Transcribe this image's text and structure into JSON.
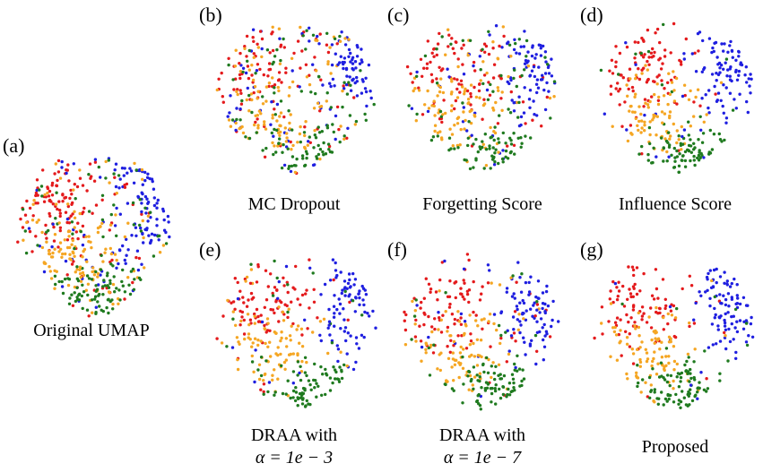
{
  "figure": {
    "panels": [
      {
        "letter": "(a)",
        "caption": "Original UMAP",
        "caption2": "",
        "mixing": 0.38,
        "gap": 0.0,
        "seed": 11,
        "n": 520,
        "stray": 0.05
      },
      {
        "letter": "(b)",
        "caption": "MC Dropout",
        "caption2": "",
        "mixing": 0.46,
        "gap": 0.1,
        "seed": 23,
        "n": 430,
        "stray": 0.08
      },
      {
        "letter": "(c)",
        "caption": "Forgetting Score",
        "caption2": "",
        "mixing": 0.28,
        "gap": 0.35,
        "seed": 37,
        "n": 400,
        "stray": 0.06
      },
      {
        "letter": "(d)",
        "caption": "Influence Score",
        "caption2": "",
        "mixing": 0.14,
        "gap": 0.6,
        "seed": 41,
        "n": 380,
        "stray": 0.03
      },
      {
        "letter": "(e)",
        "caption": "DRAA with",
        "caption2": "α = 1e − 3",
        "mixing": 0.16,
        "gap": 0.7,
        "seed": 53,
        "n": 380,
        "stray": 0.04
      },
      {
        "letter": "(f)",
        "caption": "DRAA with",
        "caption2": "α = 1e − 7",
        "mixing": 0.1,
        "gap": 0.8,
        "seed": 67,
        "n": 380,
        "stray": 0.03
      },
      {
        "letter": "(g)",
        "caption": "Proposed",
        "caption2": "",
        "mixing": 0.06,
        "gap": 0.85,
        "seed": 79,
        "n": 380,
        "stray": 0.02
      }
    ]
  },
  "chart_data": {
    "type": "scatter",
    "xlabel": "",
    "ylabel": "",
    "grid": false,
    "legend": "none",
    "series": [
      {
        "color": "#e41a1c"
      },
      {
        "color": "#1f1fe0"
      },
      {
        "color": "#f5a623"
      },
      {
        "color": "#1f7a1f"
      }
    ]
  }
}
